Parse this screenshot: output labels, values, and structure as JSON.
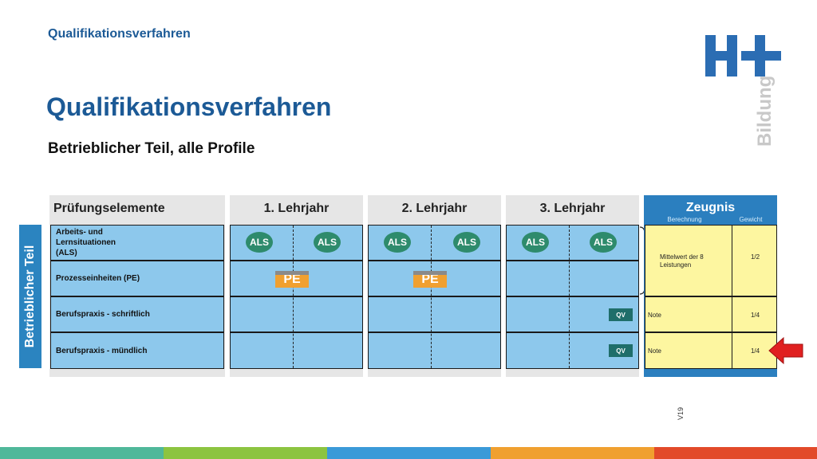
{
  "header": {
    "breadcrumb": "Qualifikationsverfahren",
    "title": "Qualifikationsverfahren",
    "subtitle": "Betrieblicher Teil, alle Profile"
  },
  "logo": {
    "text": "H+",
    "subtext": "Bildung"
  },
  "table": {
    "columns": [
      "Prüfungselemente",
      "1. Lehrjahr",
      "2. Lehrjahr",
      "3. Lehrjahr"
    ],
    "side_label": "Betrieblicher Teil",
    "rows": [
      "Arbeits- und Lernsituationen (ALS)",
      "Prozesseinheiten (PE)",
      "Berufspraxis - schriftlich",
      "Berufspraxis - mündlich"
    ],
    "als_label": "ALS",
    "pe_label": "PE",
    "qv_label": "QV"
  },
  "zeugnis": {
    "title": "Zeugnis",
    "col_berechnung": "Berechnung",
    "col_gewicht": "Gewicht",
    "row1_calc": "Mittelwert der 8 Leistungen",
    "row1_weight": "1/2",
    "row2_calc": "Note",
    "row2_weight": "1/4",
    "row3_calc": "Note",
    "row3_weight": "1/4"
  },
  "version": "V19",
  "colors": {
    "accent": "#1c5a96",
    "cell_blue": "#8dc8ec",
    "als_green": "#2e8b6c",
    "pe_orange": "#f0a030",
    "zeugnis_yellow": "#fdf6a0",
    "arrow_red": "#e02020"
  },
  "stripe_colors": [
    "#4fb89a",
    "#8cc440",
    "#3a9ad8",
    "#f0a030",
    "#e24a2a"
  ]
}
